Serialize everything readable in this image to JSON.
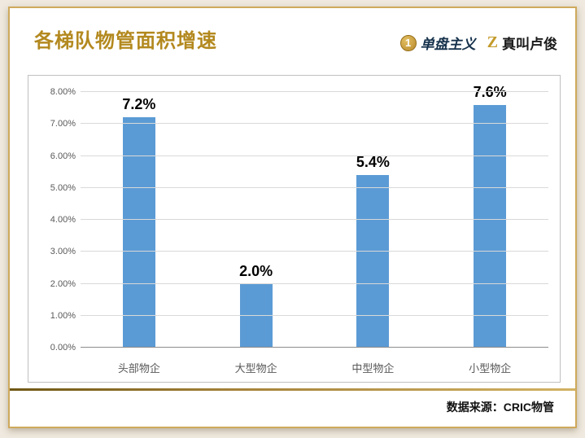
{
  "header": {
    "title": "各梯队物管面积增速",
    "brand1": {
      "icon": "1",
      "label": "单盘主义"
    },
    "brand2": {
      "icon": "Z",
      "label": "真叫卢俊"
    }
  },
  "footer": {
    "source": "数据来源：CRIC物管"
  },
  "colors": {
    "title_gold": "#b3891f",
    "bar_blue": "#5b9bd5",
    "grid_gray": "#d9d9d9",
    "card_border_gold": "#cfa95c"
  },
  "chart_data": {
    "type": "bar",
    "title": "各梯队物管面积增速",
    "categories": [
      "头部物企",
      "大型物企",
      "中型物企",
      "小型物企"
    ],
    "values": [
      7.2,
      2.0,
      5.4,
      7.6
    ],
    "value_labels": [
      "7.2%",
      "2.0%",
      "5.4%",
      "7.6%"
    ],
    "xlabel": "",
    "ylabel": "",
    "ylim": [
      0,
      8
    ],
    "ytick_step": 1,
    "yticks": [
      "0.00%",
      "1.00%",
      "2.00%",
      "3.00%",
      "4.00%",
      "5.00%",
      "6.00%",
      "7.00%",
      "8.00%"
    ],
    "grid": true,
    "legend": false,
    "bar_color": "#5b9bd5"
  }
}
